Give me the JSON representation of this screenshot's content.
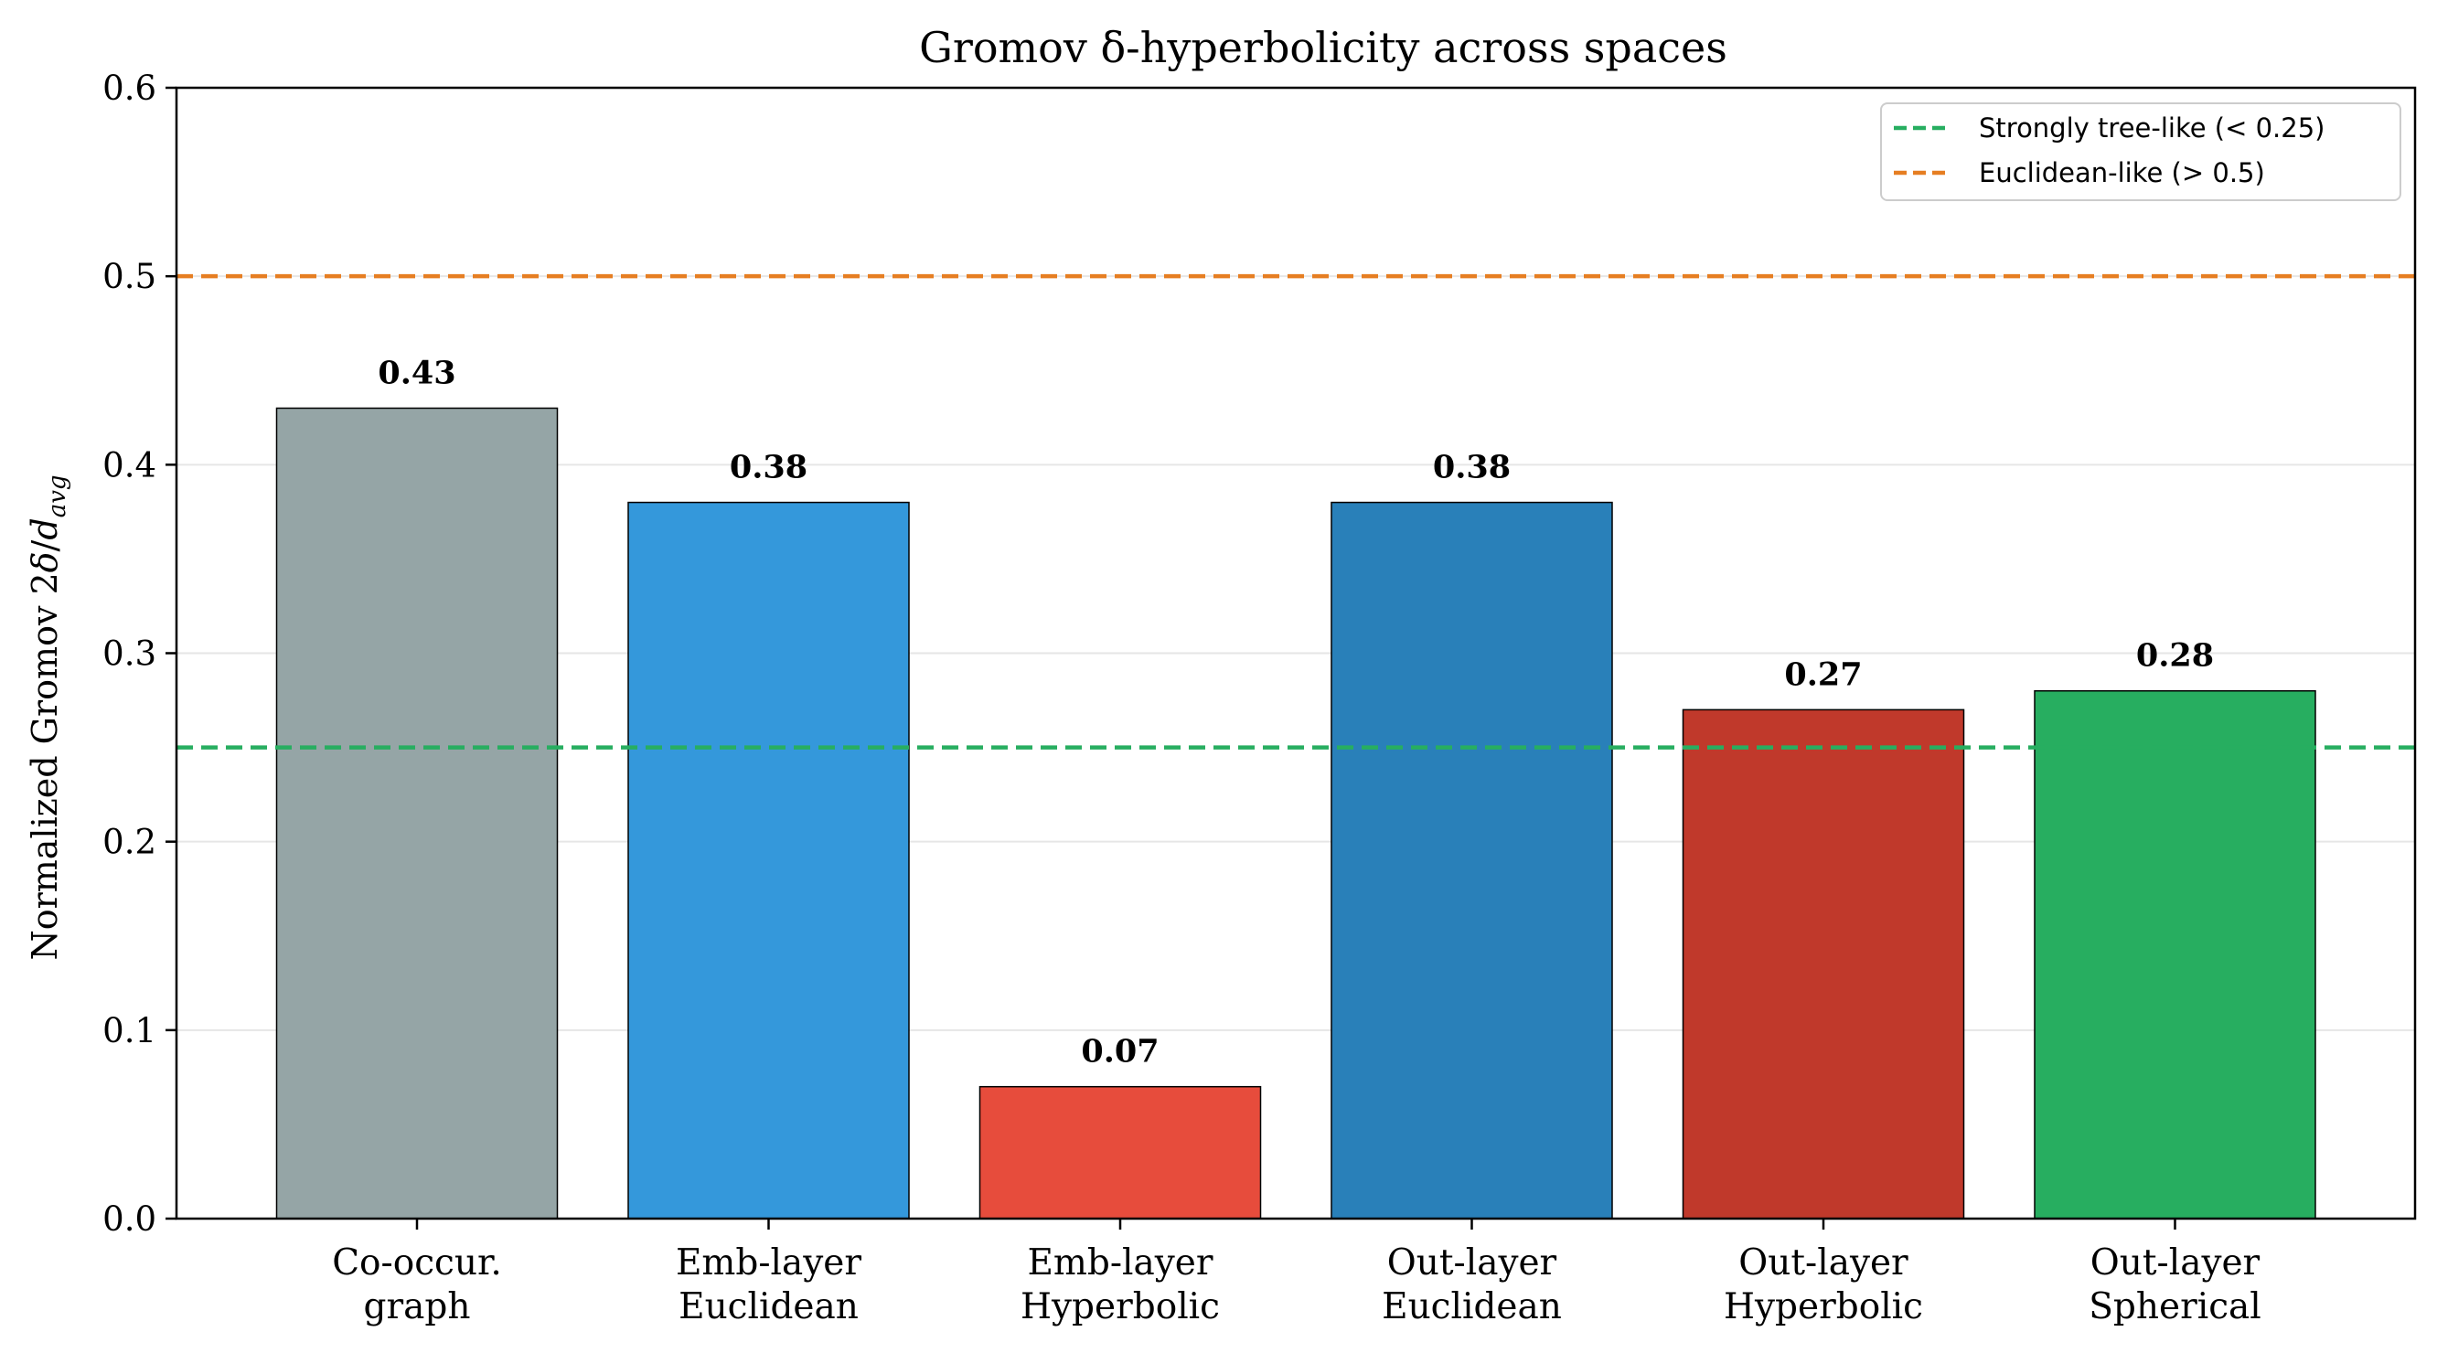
{
  "chart_data": {
    "type": "bar",
    "title": "Gromov δ-hyperbolicity across spaces",
    "ylabel": {
      "prefix": "Normalized Gromov 2",
      "delta": "δ",
      "slash": "/",
      "d": "d",
      "sub": "avg"
    },
    "ylim": [
      0,
      0.6
    ],
    "yticks": [
      "0.0",
      "0.1",
      "0.2",
      "0.3",
      "0.4",
      "0.5",
      "0.6"
    ],
    "grid": true,
    "legend_position": "top-right",
    "categories": [
      [
        "Co-occur.",
        "graph"
      ],
      [
        "Emb-layer",
        "Euclidean"
      ],
      [
        "Emb-layer",
        "Hyperbolic"
      ],
      [
        "Out-layer",
        "Euclidean"
      ],
      [
        "Out-layer",
        "Hyperbolic"
      ],
      [
        "Out-layer",
        "Spherical"
      ]
    ],
    "values": [
      0.43,
      0.38,
      0.07,
      0.38,
      0.27,
      0.28
    ],
    "value_labels": [
      "0.43",
      "0.38",
      "0.07",
      "0.38",
      "0.27",
      "0.28"
    ],
    "bar_colors": [
      "#95a5a6",
      "#3498db",
      "#e74c3c",
      "#2980b9",
      "#c0392b",
      "#27ae60"
    ],
    "reference_lines": [
      {
        "value": 0.25,
        "label": "Strongly tree-like (< 0.25)",
        "color": "#27ae60"
      },
      {
        "value": 0.5,
        "label": "Euclidean-like (> 0.5)",
        "color": "#e67e22"
      }
    ]
  }
}
